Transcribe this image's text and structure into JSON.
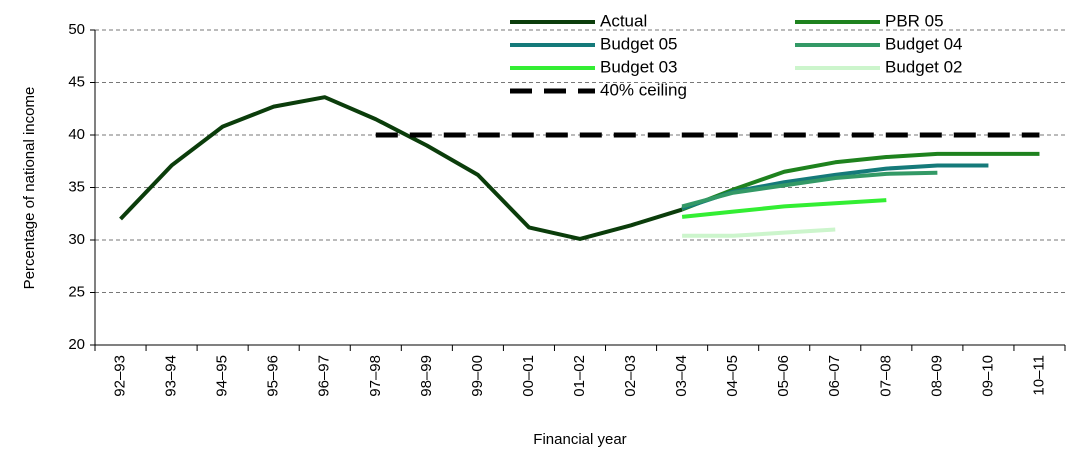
{
  "chart_data": {
    "type": "line",
    "x_label": "Financial year",
    "y_label": "Percentage of national income",
    "categories": [
      "92–93",
      "93–94",
      "94–95",
      "95–96",
      "96–97",
      "97–98",
      "98–99",
      "99–00",
      "00–01",
      "01–02",
      "02–03",
      "03–04",
      "04–05",
      "05–06",
      "06–07",
      "07–08",
      "08–09",
      "09–10",
      "10–11"
    ],
    "ylim": [
      20,
      50
    ],
    "yticks": [
      20,
      25,
      30,
      35,
      40,
      45,
      50
    ],
    "grid": true,
    "series": [
      {
        "name": "Actual",
        "color": "#0b3d0b",
        "style": "solid",
        "values": [
          32.0,
          37.1,
          40.8,
          42.7,
          43.6,
          41.5,
          39.0,
          36.2,
          31.2,
          30.1,
          31.4,
          32.9,
          null,
          null,
          null,
          null,
          null,
          null,
          null
        ]
      },
      {
        "name": "PBR 05",
        "color": "#1e821e",
        "style": "solid",
        "values": [
          null,
          null,
          null,
          null,
          null,
          null,
          null,
          null,
          null,
          null,
          null,
          32.9,
          34.8,
          36.5,
          37.4,
          37.9,
          38.2,
          38.2,
          38.2
        ]
      },
      {
        "name": "Budget 05",
        "color": "#157a7a",
        "style": "solid",
        "values": [
          null,
          null,
          null,
          null,
          null,
          null,
          null,
          null,
          null,
          null,
          null,
          33.0,
          34.6,
          35.5,
          36.2,
          36.8,
          37.1,
          37.1,
          null
        ]
      },
      {
        "name": "Budget 04",
        "color": "#339966",
        "style": "solid",
        "values": [
          null,
          null,
          null,
          null,
          null,
          null,
          null,
          null,
          null,
          null,
          null,
          33.2,
          34.5,
          35.2,
          35.9,
          36.3,
          36.4,
          null,
          null
        ]
      },
      {
        "name": "Budget 03",
        "color": "#33ee33",
        "style": "solid",
        "values": [
          null,
          null,
          null,
          null,
          null,
          null,
          null,
          null,
          null,
          null,
          null,
          32.2,
          32.7,
          33.2,
          33.5,
          33.8,
          null,
          null,
          null
        ]
      },
      {
        "name": "Budget 02",
        "color": "#ccf5cc",
        "style": "solid",
        "values": [
          null,
          null,
          null,
          null,
          null,
          null,
          null,
          null,
          null,
          null,
          null,
          30.4,
          30.4,
          30.7,
          31.0,
          null,
          null,
          null,
          null
        ]
      },
      {
        "name": "40% ceiling",
        "color": "#000000",
        "style": "dashed",
        "values": [
          null,
          null,
          null,
          null,
          null,
          40,
          40,
          40,
          40,
          40,
          40,
          40,
          40,
          40,
          40,
          40,
          40,
          40,
          40
        ]
      }
    ]
  }
}
